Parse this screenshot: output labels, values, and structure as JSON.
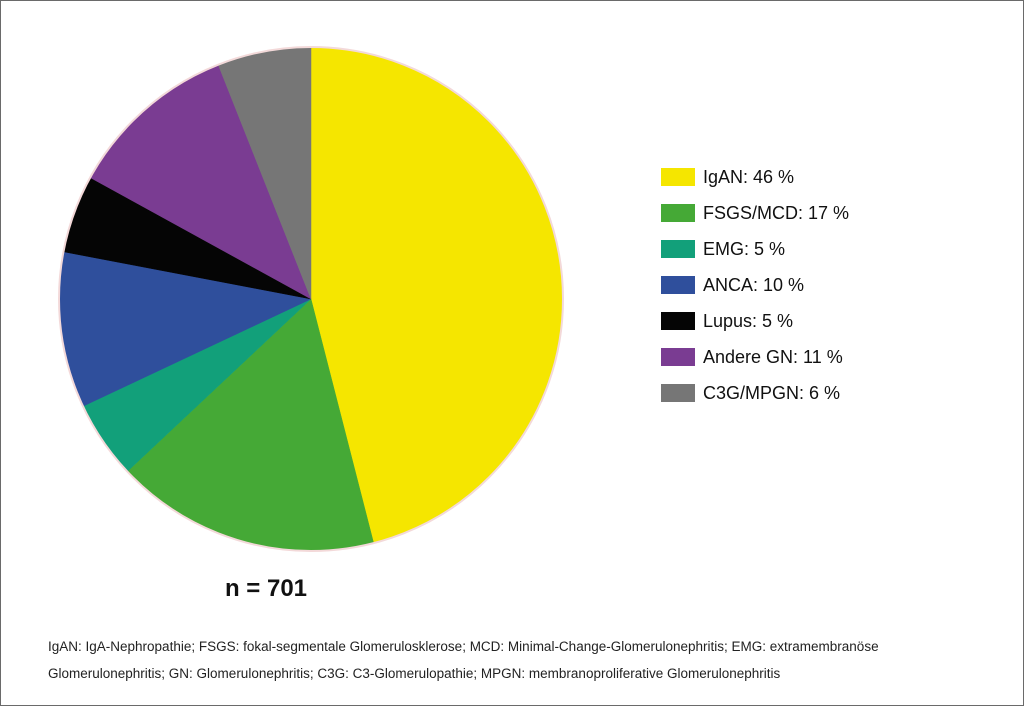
{
  "chart_data": {
    "type": "pie",
    "title": "",
    "slices": [
      {
        "label": "IgAN: 46 %",
        "value": 46,
        "color": "#f5e600"
      },
      {
        "label": "FSGS/MCD: 17 %",
        "value": 17,
        "color": "#45a936"
      },
      {
        "label": "EMG: 5 %",
        "value": 5,
        "color": "#12a07a"
      },
      {
        "label": "ANCA: 10 %",
        "value": 10,
        "color": "#2f4f9c"
      },
      {
        "label": "Lupus: 5 %",
        "value": 5,
        "color": "#050505"
      },
      {
        "label": "Andere GN: 11 %",
        "value": 11,
        "color": "#7a3c92"
      },
      {
        "label": "C3G/MPGN: 6 %",
        "value": 6,
        "color": "#767676"
      }
    ],
    "total_label": "n = 701",
    "legend_position": "right"
  },
  "footnote": {
    "line1": "IgAN: IgA-Nephropathie; FSGS: fokal-segmentale Glomerulosklerose; MCD: Minimal-Change-Glomerulonephritis; EMG: extramembranöse",
    "line2": "Glomerulonephritis; GN: Glomerulonephritis; C3G: C3-Glomerulopathie; MPGN: membranoproliferative Glomerulonephritis"
  }
}
